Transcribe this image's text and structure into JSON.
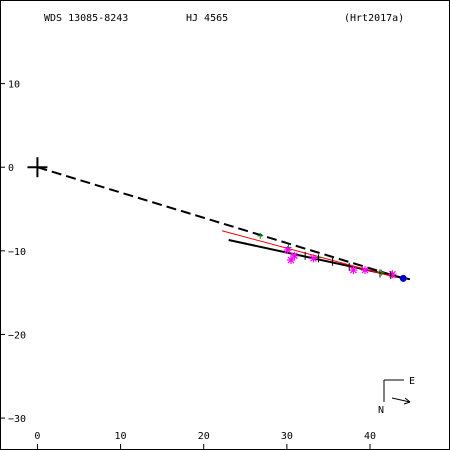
{
  "header": {
    "left": "WDS 13085-8243",
    "middle": "HJ 4565",
    "right": "(Hrt2017a)"
  },
  "compass": {
    "east_label": "E",
    "north_label": "N"
  },
  "colors": {
    "axis": "#000000",
    "orbit_dashed": "#000000",
    "orbit_solid": "#000000",
    "fit_line": "#ff0000",
    "green_points": "#008800",
    "magenta_points": "#ff00ff",
    "latest_point": "#0000cc"
  },
  "chart_data": {
    "type": "scatter",
    "title": "",
    "xlabel": "",
    "ylabel": "",
    "xlim": [
      -4.5,
      49.5
    ],
    "ylim": [
      -33.7,
      20
    ],
    "x_ticks": [
      0,
      10,
      20,
      30,
      40
    ],
    "y_ticks": [
      10,
      0,
      -10,
      -20,
      -30
    ],
    "x_tick_labels": [
      "0",
      "10",
      "20",
      "30",
      "40"
    ],
    "y_tick_labels": [
      "10",
      "0",
      "−10",
      "−20",
      "−30"
    ],
    "primary_star": [
      0,
      0
    ],
    "series": [
      {
        "kind": "dashed_line",
        "color": "orbit_dashed",
        "points": [
          [
            0,
            0
          ],
          [
            44,
            -13.3
          ]
        ]
      },
      {
        "kind": "solid_line",
        "color": "orbit_solid",
        "points": [
          [
            23,
            -8.7
          ],
          [
            44.8,
            -13.4
          ]
        ]
      },
      {
        "kind": "thin_line",
        "color": "fit_line",
        "points": [
          [
            22.2,
            -7.6
          ],
          [
            43.2,
            -13.2
          ]
        ]
      },
      {
        "kind": "plus_markers",
        "color": "green_points",
        "points": [
          [
            26.8,
            -8.2
          ],
          [
            30.2,
            -9.6
          ],
          [
            33.8,
            -10.8
          ],
          [
            41.4,
            -12.6
          ]
        ]
      },
      {
        "kind": "star_markers",
        "color": "magenta_points",
        "points": [
          [
            30.1,
            -9.9
          ],
          [
            30.9,
            -10.6
          ],
          [
            30.5,
            -11.1
          ],
          [
            33.2,
            -10.9
          ],
          [
            38,
            -12.3
          ],
          [
            39.4,
            -12.3
          ],
          [
            42.7,
            -12.8
          ]
        ]
      },
      {
        "kind": "tick_markers",
        "color": "orbit_solid",
        "points": [
          [
            32.2,
            -10.6
          ],
          [
            33.8,
            -10.9
          ],
          [
            35.5,
            -11.3
          ],
          [
            37.5,
            -11.9
          ],
          [
            41.2,
            -12.7
          ],
          [
            42.5,
            -12.9
          ]
        ]
      },
      {
        "kind": "filled_dot",
        "color": "latest_point",
        "points": [
          [
            44,
            -13.3
          ]
        ]
      }
    ]
  }
}
